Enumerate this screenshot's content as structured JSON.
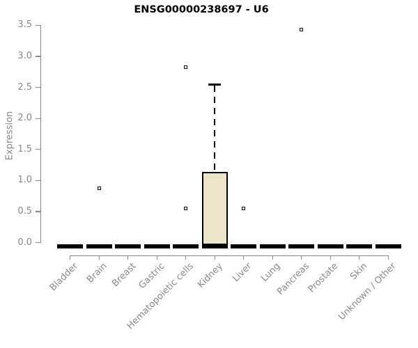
{
  "chart_data": {
    "type": "box",
    "title": "ENSG00000238697 - U6",
    "xlabel": "",
    "ylabel": "Expression",
    "ylim": [
      0,
      3.5
    ],
    "grid": false,
    "legend": null,
    "yticks": [
      0.0,
      0.5,
      1.0,
      1.5,
      2.0,
      2.5,
      3.0,
      3.5
    ],
    "ytick_labels": [
      "0.0",
      "0.5",
      "1.0",
      "1.5",
      "2.0",
      "2.5",
      "3.0",
      "3.5"
    ],
    "categories": [
      "Bladder",
      "Brain",
      "Breast",
      "Gastric",
      "Hematopoietic cells",
      "Kidney",
      "Liver",
      "Lung",
      "Pancreas",
      "Prostate",
      "Skin",
      "Unknown / Other"
    ],
    "series": [
      {
        "category": "Bladder",
        "whisker_low": 0,
        "q1": 0,
        "median": 0,
        "q3": 0,
        "whisker_high": 0,
        "outliers": []
      },
      {
        "category": "Brain",
        "whisker_low": 0,
        "q1": 0,
        "median": 0,
        "q3": 0,
        "whisker_high": 0,
        "outliers": [
          0.87
        ]
      },
      {
        "category": "Breast",
        "whisker_low": 0,
        "q1": 0,
        "median": 0,
        "q3": 0,
        "whisker_high": 0,
        "outliers": []
      },
      {
        "category": "Gastric",
        "whisker_low": 0,
        "q1": 0,
        "median": 0,
        "q3": 0,
        "whisker_high": 0,
        "outliers": []
      },
      {
        "category": "Hematopoietic cells",
        "whisker_low": 0,
        "q1": 0,
        "median": 0,
        "q3": 0,
        "whisker_high": 0,
        "outliers": [
          2.83,
          0.55
        ]
      },
      {
        "category": "Kidney",
        "whisker_low": 0,
        "q1": 0.02,
        "median": 0.02,
        "q3": 1.13,
        "whisker_high": 2.55,
        "outliers": []
      },
      {
        "category": "Liver",
        "whisker_low": 0,
        "q1": 0,
        "median": 0,
        "q3": 0,
        "whisker_high": 0,
        "outliers": [
          0.55
        ]
      },
      {
        "category": "Lung",
        "whisker_low": 0,
        "q1": 0,
        "median": 0,
        "q3": 0,
        "whisker_high": 0,
        "outliers": []
      },
      {
        "category": "Pancreas",
        "whisker_low": 0,
        "q1": 0,
        "median": 0,
        "q3": 0,
        "whisker_high": 0,
        "outliers": [
          3.43
        ]
      },
      {
        "category": "Prostate",
        "whisker_low": 0,
        "q1": 0,
        "median": 0,
        "q3": 0,
        "whisker_high": 0,
        "outliers": []
      },
      {
        "category": "Skin",
        "whisker_low": 0,
        "q1": 0,
        "median": 0,
        "q3": 0,
        "whisker_high": 0,
        "outliers": []
      },
      {
        "category": "Unknown / Other",
        "whisker_low": 0,
        "q1": 0,
        "median": 0,
        "q3": 0,
        "whisker_high": 0,
        "outliers": []
      }
    ],
    "colors": {
      "box_fill": "#ede5c9",
      "box_border": "#000000",
      "median_bar": "#000000",
      "outlier_border": "#000000",
      "outlier_fill": "#ffffff",
      "axis": "#898989",
      "tick_label": "#898989",
      "title": "#000000",
      "background": "#ffffff"
    }
  }
}
